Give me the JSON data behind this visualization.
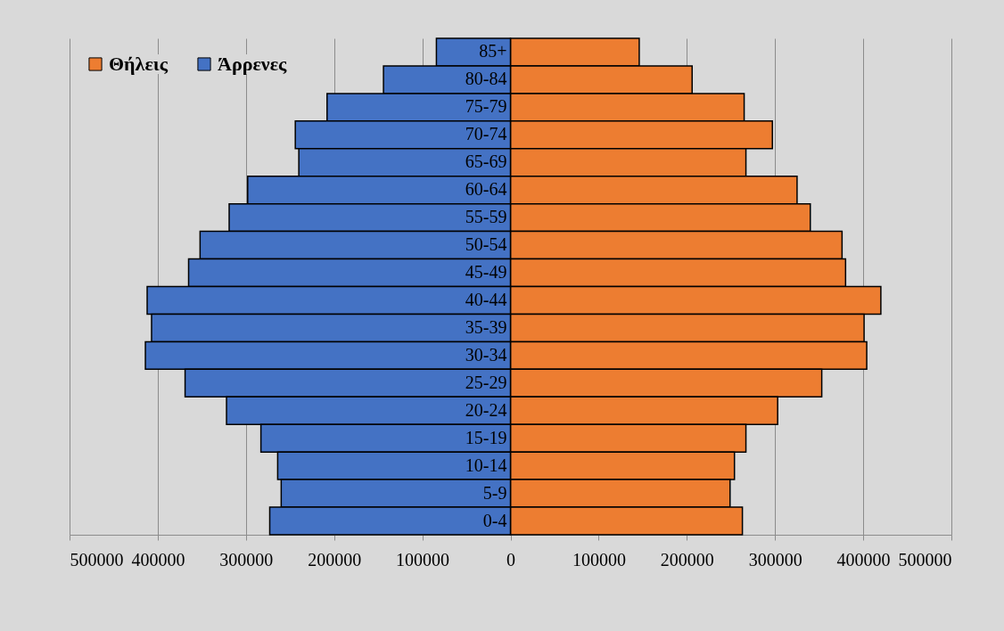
{
  "chart_data": {
    "type": "bar",
    "orientation": "horizontal",
    "stacked": true,
    "categories": [
      "85+",
      "80-84",
      "75-79",
      "70-74",
      "65-69",
      "60-64",
      "55-59",
      "50-54",
      "45-49",
      "40-44",
      "35-39",
      "30-34",
      "25-29",
      "20-24",
      "15-19",
      "10-14",
      "5-9",
      "0-4"
    ],
    "series": [
      {
        "name": "Θήλεις",
        "color": "#ed7d31",
        "values": [
          146000,
          206000,
          265000,
          297000,
          267000,
          325000,
          340000,
          376000,
          380000,
          420000,
          401000,
          404000,
          353000,
          303000,
          267000,
          254000,
          249000,
          263000
        ]
      },
      {
        "name": "Άρρενες",
        "color": "#4472c4",
        "values": [
          -84000,
          -144000,
          -208000,
          -244000,
          -240000,
          -298000,
          -319000,
          -352000,
          -365000,
          -412000,
          -407000,
          -414000,
          -369000,
          -322000,
          -283000,
          -264000,
          -260000,
          -273000
        ]
      }
    ],
    "xlim": [
      -500000,
      500000
    ],
    "xticks": [
      {
        "value": -500000,
        "label": "500000"
      },
      {
        "value": -400000,
        "label": "400000"
      },
      {
        "value": -300000,
        "label": "300000"
      },
      {
        "value": -200000,
        "label": "200000"
      },
      {
        "value": -100000,
        "label": "100000"
      },
      0,
      100000,
      200000,
      300000,
      400000,
      500000
    ],
    "grid": "x",
    "legend": "top left"
  }
}
